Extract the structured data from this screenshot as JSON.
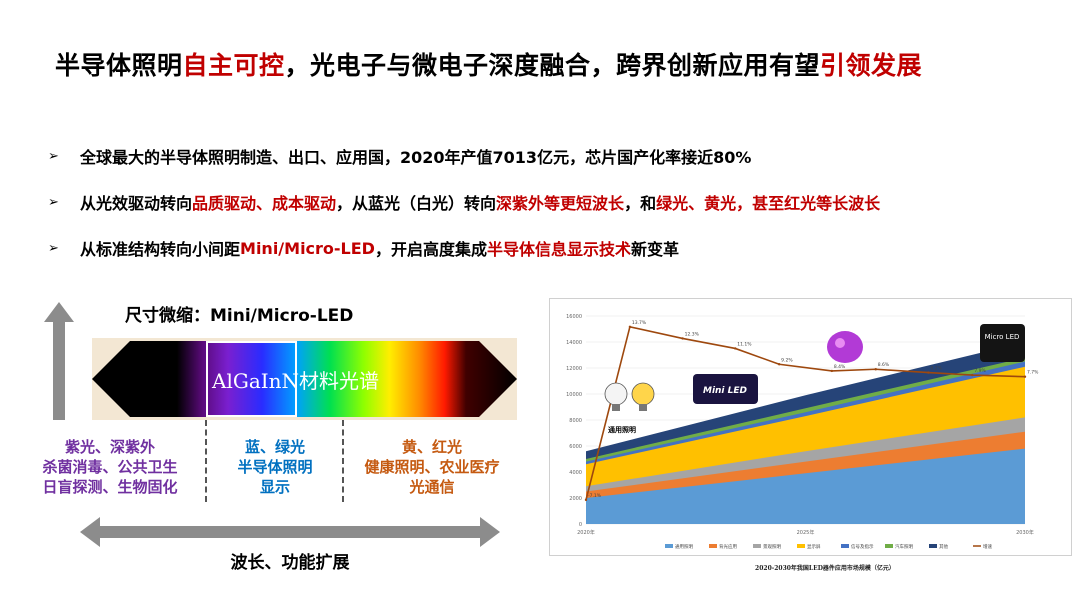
{
  "title": {
    "part1": "半导体照明",
    "part2": "自主可控",
    "part3": "，光电子与微电子深度融合，跨界创新应用有望",
    "part4": "引领发展"
  },
  "bullets": {
    "marker": "➢",
    "b1": {
      "t1": "全球最大的半导体照明制造、出口、应用国，2020年产值7013亿元，芯片国产化率接近80%"
    },
    "b2": {
      "t1": "从光效驱动转向",
      "t2": "品质驱动、成本驱动",
      "t3": "，从蓝光（白光）转向",
      "t4": "深紫外等更短波长",
      "t5": "，和",
      "t6": "绿光、黄光，甚至红光等长波长"
    },
    "b3": {
      "t1": "从标准结构转向小间距",
      "t2": "Mini/Micro-LED",
      "t3": "，开启高度集成",
      "t4": "半导体信息显示技术",
      "t5": "新变革"
    }
  },
  "diagram": {
    "size_label": "尺寸微缩：Mini/Micro-LED",
    "spectrum_label": "AlGaInN材料光谱",
    "col_purple": {
      "l1": "紫光、深紫外",
      "l2": "杀菌消毒、公共卫生",
      "l3": "日盲探测、生物固化"
    },
    "col_blue": {
      "l1": "蓝、绿光",
      "l2": "半导体照明",
      "l3": "显示"
    },
    "col_orange": {
      "l1": "黄、红光",
      "l2": "健康照明、农业医疗",
      "l3": "光通信"
    },
    "x_label": "波长、功能扩展"
  },
  "chart_data": {
    "type": "area",
    "title": "",
    "caption": "2020-2030年我国LED器件应用市场规模（亿元）",
    "x": [
      "2020年",
      "2025年",
      "2030年"
    ],
    "y_ticks": [
      0,
      2000,
      4000,
      6000,
      8000,
      10000,
      12000,
      14000,
      16000
    ],
    "ylim": [
      0,
      16000
    ],
    "series_stacked_totals": [
      {
        "name": "通用照明",
        "values": [
          2000,
          3900,
          5800
        ]
      },
      {
        "name": "背光应用",
        "values": [
          2500,
          4800,
          7100
        ]
      },
      {
        "name": "景观照明",
        "values": [
          2900,
          5600,
          8200
        ]
      },
      {
        "name": "显示屏",
        "values": [
          4600,
          8300,
          12100
        ]
      },
      {
        "name": "信号及指示",
        "values": [
          4800,
          8600,
          12500
        ]
      },
      {
        "name": "汽车照明",
        "values": [
          5000,
          8900,
          12800
        ]
      },
      {
        "name": "其他",
        "values": [
          5600,
          9900,
          14000
        ]
      }
    ],
    "growth_line": {
      "name": "增速",
      "x_frac": [
        0.0,
        0.1,
        0.22,
        0.34,
        0.44,
        0.56,
        0.66,
        0.78,
        0.88,
        1.0
      ],
      "values": [
        -7.1,
        13.7,
        12.3,
        11.1,
        9.2,
        8.4,
        8.6,
        8.2,
        7.9,
        7.7
      ],
      "labels": [
        "-7.1%",
        "13.7%",
        "12.3%",
        "11.1%",
        "9.2%",
        "8.4%",
        "8.6%",
        "8.2%",
        "7.9%",
        "7.7%"
      ]
    },
    "legend": [
      "通用照明",
      "背光应用",
      "景观照明",
      "显示屏",
      "信号及指示",
      "汽车照明",
      "其他",
      "增速"
    ],
    "annotations": {
      "general_lighting": "通用照明",
      "mini_led": "Mini LED",
      "micro_led": "Micro LED"
    },
    "colors": {
      "通用照明": "#5b9bd5",
      "背光应用": "#ed7d31",
      "景观照明": "#a5a5a5",
      "显示屏": "#ffc000",
      "信号及指示": "#4472c4",
      "汽车照明": "#70ad47",
      "其他": "#264478",
      "增速": "#9e480e"
    }
  }
}
